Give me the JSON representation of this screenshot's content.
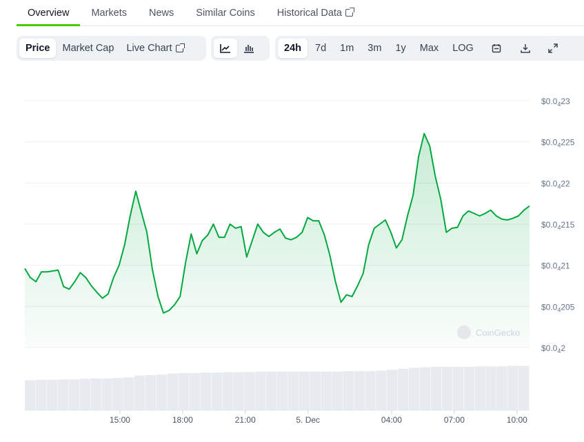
{
  "tabs": [
    "Overview",
    "Markets",
    "News",
    "Similar Coins",
    "Historical Data"
  ],
  "metric_buttons": [
    "Price",
    "Market Cap",
    "Live Chart"
  ],
  "range_buttons": [
    "24h",
    "7d",
    "1m",
    "3m",
    "1y",
    "Max",
    "LOG"
  ],
  "icons": [
    "line-chart-icon",
    "candlestick-icon",
    "calendar-icon",
    "download-icon",
    "expand-icon"
  ],
  "watermark": "CoinGecko",
  "chart_data": {
    "type": "area",
    "title": "",
    "price_unit": "1e-5 USD",
    "y_ticks": [
      {
        "prefix": "$0.0",
        "sub": "4",
        "rest": "23",
        "value": 2.3
      },
      {
        "prefix": "$0.0",
        "sub": "4",
        "rest": "225",
        "value": 2.25
      },
      {
        "prefix": "$0.0",
        "sub": "4",
        "rest": "22",
        "value": 2.2
      },
      {
        "prefix": "$0.0",
        "sub": "4",
        "rest": "215",
        "value": 2.15
      },
      {
        "prefix": "$0.0",
        "sub": "4",
        "rest": "21",
        "value": 2.1
      },
      {
        "prefix": "$0.0",
        "sub": "4",
        "rest": "205",
        "value": 2.05
      },
      {
        "prefix": "$0.0",
        "sub": "4",
        "rest": "2",
        "value": 2.0
      }
    ],
    "ylim": [
      2.0,
      2.3
    ],
    "x_range_hours": [
      10.45,
      34.6
    ],
    "x_ticks": [
      {
        "label": "15:00",
        "h": 15
      },
      {
        "label": "18:00",
        "h": 18
      },
      {
        "label": "21:00",
        "h": 21
      },
      {
        "label": "5. Dec",
        "h": 24
      },
      {
        "label": "04:00",
        "h": 28
      },
      {
        "label": "07:00",
        "h": 31
      },
      {
        "label": "10:00",
        "h": 34
      }
    ],
    "line_color": "#00a83e",
    "values": [
      2.096,
      2.085,
      2.08,
      2.092,
      2.092,
      2.093,
      2.094,
      2.074,
      2.071,
      2.08,
      2.091,
      2.085,
      2.075,
      2.067,
      2.06,
      2.065,
      2.085,
      2.1,
      2.125,
      2.16,
      2.19,
      2.165,
      2.14,
      2.095,
      2.062,
      2.042,
      2.045,
      2.052,
      2.062,
      2.104,
      2.138,
      2.114,
      2.13,
      2.137,
      2.15,
      2.134,
      2.134,
      2.15,
      2.145,
      2.147,
      2.11,
      2.13,
      2.15,
      2.14,
      2.135,
      2.14,
      2.144,
      2.133,
      2.131,
      2.134,
      2.14,
      2.158,
      2.154,
      2.154,
      2.137,
      2.112,
      2.08,
      2.055,
      2.064,
      2.062,
      2.075,
      2.09,
      2.125,
      2.145,
      2.15,
      2.155,
      2.14,
      2.121,
      2.131,
      2.16,
      2.185,
      2.232,
      2.26,
      2.245,
      2.208,
      2.18,
      2.14,
      2.145,
      2.146,
      2.16,
      2.166,
      2.163,
      2.16,
      2.163,
      2.167,
      2.16,
      2.156,
      2.155,
      2.157,
      2.16,
      2.167,
      2.172
    ],
    "volume_relative": [
      0.62,
      0.63,
      0.63,
      0.64,
      0.64,
      0.65,
      0.66,
      0.66,
      0.67,
      0.68,
      0.72,
      0.73,
      0.74,
      0.76,
      0.77,
      0.77,
      0.78,
      0.78,
      0.79,
      0.79,
      0.79,
      0.8,
      0.8,
      0.8,
      0.8,
      0.8,
      0.8,
      0.8,
      0.8,
      0.81,
      0.81,
      0.81,
      0.82,
      0.84,
      0.86,
      0.88,
      0.89,
      0.9,
      0.9,
      0.9,
      0.9,
      0.91,
      0.91,
      0.91,
      0.92,
      0.92
    ]
  }
}
